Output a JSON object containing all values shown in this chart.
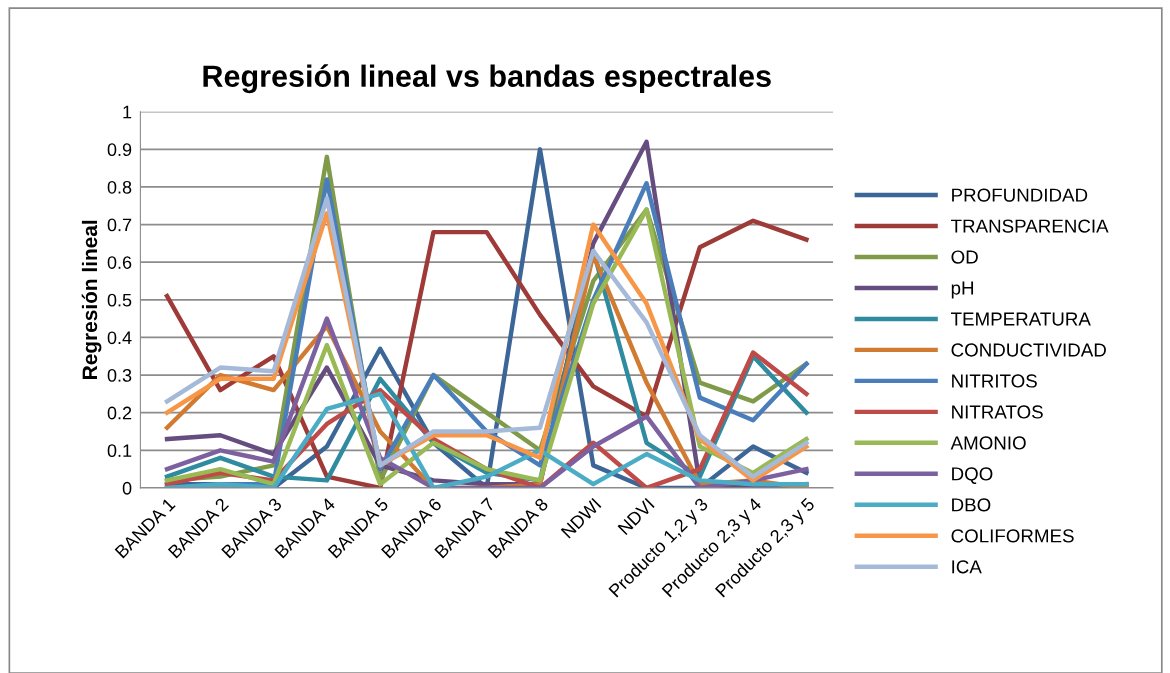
{
  "chart_data": {
    "type": "line",
    "title": "Regresión lineal vs bandas espectrales",
    "ylabel": "Regresión lineal",
    "categories": [
      "BANDA 1",
      "BANDA 2",
      "BANDA 3",
      "BANDA 4",
      "BANDA 5",
      "BANDA 6",
      "BANDA 7",
      "BANDA 8",
      "NDWI",
      "NDVI",
      "Producto 1,2 y 3",
      "Producto 2,3 y 4",
      "Producto 2,3 y 5"
    ],
    "ylim": [
      0,
      1
    ],
    "yticks": [
      0,
      0.1,
      0.2,
      0.3,
      0.4,
      0.5,
      0.6,
      0.7,
      0.8,
      0.9,
      1
    ],
    "grid": "y",
    "legend": "right",
    "marker": "none",
    "line_style": "solid",
    "series": [
      {
        "name": "PROFUNDIDAD",
        "color": "#3c6698",
        "values": [
          0.01,
          0.01,
          0.0,
          0.11,
          0.37,
          0.12,
          0.0,
          0.9,
          0.06,
          0.0,
          0.0,
          0.11,
          0.04
        ]
      },
      {
        "name": "TRANSPARENCIA",
        "color": "#9e3b38",
        "values": [
          0.51,
          0.26,
          0.35,
          0.03,
          0.0,
          0.68,
          0.68,
          0.46,
          0.27,
          0.19,
          0.64,
          0.71,
          0.66
        ]
      },
      {
        "name": "OD",
        "color": "#7f9a48",
        "values": [
          0.02,
          0.03,
          0.06,
          0.88,
          0.02,
          0.3,
          0.2,
          0.1,
          0.55,
          0.74,
          0.28,
          0.23,
          0.33
        ]
      },
      {
        "name": "pH",
        "color": "#664d80",
        "values": [
          0.13,
          0.14,
          0.09,
          0.32,
          0.06,
          0.02,
          0.01,
          0.01,
          0.65,
          0.92,
          0.01,
          0.0,
          0.01
        ]
      },
      {
        "name": "TEMPERATURA",
        "color": "#2e8ba0",
        "values": [
          0.03,
          0.08,
          0.03,
          0.02,
          0.29,
          0.12,
          0.04,
          0.02,
          0.63,
          0.12,
          0.03,
          0.35,
          0.2
        ]
      },
      {
        "name": "CONDUCTIVIDAD",
        "color": "#d07b31",
        "values": [
          0.16,
          0.3,
          0.26,
          0.43,
          0.15,
          0.0,
          0.0,
          0.01,
          0.62,
          0.28,
          0.01,
          0.02,
          0.0
        ]
      },
      {
        "name": "NITRITOS",
        "color": "#4a7ebb",
        "values": [
          0.0,
          0.01,
          0.01,
          0.82,
          0.05,
          0.3,
          0.15,
          0.06,
          0.5,
          0.81,
          0.24,
          0.18,
          0.33
        ]
      },
      {
        "name": "NITRATOS",
        "color": "#be4b48",
        "values": [
          0.01,
          0.04,
          0.02,
          0.17,
          0.26,
          0.13,
          0.05,
          0.0,
          0.12,
          0.0,
          0.05,
          0.36,
          0.25
        ]
      },
      {
        "name": "AMONIO",
        "color": "#98b954",
        "values": [
          0.02,
          0.05,
          0.01,
          0.38,
          0.01,
          0.12,
          0.05,
          0.02,
          0.49,
          0.74,
          0.11,
          0.04,
          0.13
        ]
      },
      {
        "name": "DQO",
        "color": "#7d60a0",
        "values": [
          0.05,
          0.1,
          0.07,
          0.45,
          0.08,
          0.0,
          0.0,
          0.0,
          0.11,
          0.19,
          0.0,
          0.02,
          0.05
        ]
      },
      {
        "name": "DBO",
        "color": "#4bacc6",
        "values": [
          0.0,
          0.01,
          0.0,
          0.21,
          0.25,
          0.0,
          0.03,
          0.1,
          0.01,
          0.09,
          0.02,
          0.01,
          0.01
        ]
      },
      {
        "name": "COLIFORMES",
        "color": "#f79646",
        "values": [
          0.2,
          0.29,
          0.29,
          0.73,
          0.06,
          0.14,
          0.14,
          0.08,
          0.7,
          0.49,
          0.13,
          0.02,
          0.11
        ]
      },
      {
        "name": "ICA",
        "color": "#a5b9d8",
        "values": [
          0.23,
          0.32,
          0.31,
          0.77,
          0.06,
          0.15,
          0.15,
          0.16,
          0.63,
          0.44,
          0.14,
          0.03,
          0.12
        ]
      }
    ]
  }
}
